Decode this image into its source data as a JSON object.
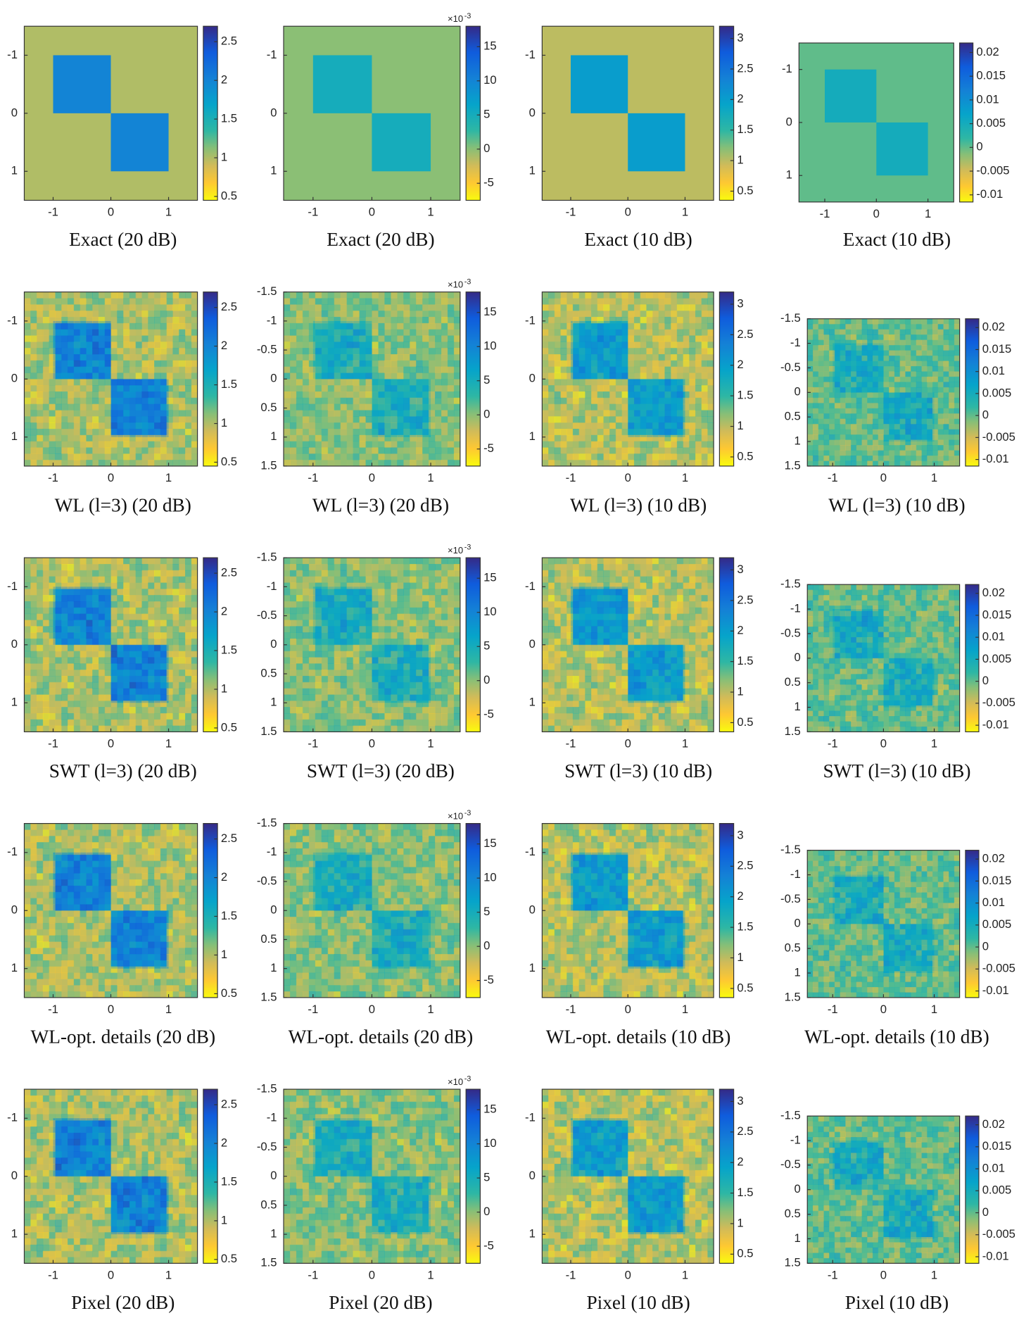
{
  "chart_data": [
    {
      "type": "heatmap",
      "title": "Exact (20 dB)",
      "xlim": [
        -1.5,
        1.5
      ],
      "ylim": [
        -1.5,
        1.5
      ],
      "xticks": [
        -1,
        0,
        1
      ],
      "yticks": [
        -1,
        0,
        1
      ],
      "clim": [
        0.45,
        2.7
      ],
      "cticks": [
        0.5,
        1,
        1.5,
        2,
        2.5
      ],
      "background": 1,
      "regions": [
        {
          "x": [
            -1,
            0
          ],
          "y": [
            -1,
            0
          ],
          "value": 2
        },
        {
          "x": [
            0,
            1
          ],
          "y": [
            0,
            1
          ],
          "value": 2
        }
      ]
    },
    {
      "type": "heatmap",
      "title": "Exact (20 dB)",
      "xlim": [
        -1.5,
        1.5
      ],
      "ylim": [
        -1.5,
        1.5
      ],
      "xticks": [
        -1,
        0,
        1
      ],
      "yticks": [
        -1,
        0,
        1
      ],
      "clim": [
        -7.5,
        18
      ],
      "cticks": [
        -5,
        0,
        5,
        10,
        15
      ],
      "colorbar_exponent_base": "×10",
      "colorbar_exponent": "-3",
      "background": 0,
      "regions": [
        {
          "x": [
            -1,
            0
          ],
          "y": [
            -1,
            0
          ],
          "value": 5
        },
        {
          "x": [
            0,
            1
          ],
          "y": [
            0,
            1
          ],
          "value": 5
        }
      ]
    },
    {
      "type": "heatmap",
      "title": "Exact (10 dB)",
      "xlim": [
        -1.5,
        1.5
      ],
      "ylim": [
        -1.5,
        1.5
      ],
      "xticks": [
        -1,
        0,
        1
      ],
      "yticks": [
        -1,
        0,
        1
      ],
      "clim": [
        0.35,
        3.2
      ],
      "cticks": [
        0.5,
        1,
        1.5,
        2,
        2.5,
        3
      ],
      "background": 1,
      "regions": [
        {
          "x": [
            -1,
            0
          ],
          "y": [
            -1,
            0
          ],
          "value": 2
        },
        {
          "x": [
            0,
            1
          ],
          "y": [
            0,
            1
          ],
          "value": 2
        }
      ]
    },
    {
      "type": "heatmap",
      "title": "Exact (10 dB)",
      "xlim": [
        -1.5,
        1.5
      ],
      "ylim": [
        -1.5,
        1.5
      ],
      "xticks": [
        -1,
        0,
        1
      ],
      "yticks": [
        -1,
        0,
        1
      ],
      "clim": [
        -0.0115,
        0.022
      ],
      "cticks": [
        -0.01,
        -0.005,
        0,
        0.005,
        0.01,
        0.015,
        0.02
      ],
      "background": 0,
      "regions": [
        {
          "x": [
            -1,
            0
          ],
          "y": [
            -1,
            0
          ],
          "value": 0.005
        },
        {
          "x": [
            0,
            1
          ],
          "y": [
            0,
            1
          ],
          "value": 0.005
        }
      ]
    },
    {
      "type": "heatmap",
      "title": "WL (l=3) (20 dB)",
      "xlim": [
        -1.5,
        1.5
      ],
      "ylim": [
        -1.5,
        1.5
      ],
      "xticks": [
        -1,
        0,
        1
      ],
      "yticks": [
        -1,
        0,
        1
      ],
      "clim": [
        0.45,
        2.7
      ],
      "cticks": [
        0.5,
        1,
        1.5,
        2,
        2.5
      ],
      "background": 1,
      "regions": [
        {
          "x": [
            -1,
            0
          ],
          "y": [
            -1,
            0
          ],
          "value": 2
        },
        {
          "x": [
            0,
            1
          ],
          "y": [
            0,
            1
          ],
          "value": 2
        }
      ]
    },
    {
      "type": "heatmap",
      "title": "WL (l=3) (20 dB)",
      "xlim": [
        -1.5,
        1.5
      ],
      "ylim": [
        -1.5,
        1.5
      ],
      "xticks": [
        -1,
        0,
        1
      ],
      "yticks": [
        -1.5,
        -1,
        -0.5,
        0,
        0.5,
        1,
        1.5
      ],
      "clim": [
        -7.5,
        18
      ],
      "cticks": [
        -5,
        0,
        5,
        10,
        15
      ],
      "colorbar_exponent_base": "×10",
      "colorbar_exponent": "-3",
      "background": 0,
      "regions": [
        {
          "x": [
            -1,
            0
          ],
          "y": [
            -1,
            0
          ],
          "value": 5
        },
        {
          "x": [
            0,
            1
          ],
          "y": [
            0,
            1
          ],
          "value": 5
        }
      ]
    },
    {
      "type": "heatmap",
      "title": "WL (l=3) (10 dB)",
      "xlim": [
        -1.5,
        1.5
      ],
      "ylim": [
        -1.5,
        1.5
      ],
      "xticks": [
        -1,
        0,
        1
      ],
      "yticks": [
        -1,
        0,
        1
      ],
      "clim": [
        0.35,
        3.2
      ],
      "cticks": [
        0.5,
        1,
        1.5,
        2,
        2.5,
        3
      ],
      "background": 1,
      "regions": [
        {
          "x": [
            -1,
            0
          ],
          "y": [
            -1,
            0
          ],
          "value": 2
        },
        {
          "x": [
            0,
            1
          ],
          "y": [
            0,
            1
          ],
          "value": 2
        }
      ]
    },
    {
      "type": "heatmap",
      "title": "WL (l=3) (10 dB)",
      "xlim": [
        -1.5,
        1.5
      ],
      "ylim": [
        -1.5,
        1.5
      ],
      "xticks": [
        -1,
        0,
        1
      ],
      "yticks": [
        -1.5,
        -1,
        -0.5,
        0,
        0.5,
        1,
        1.5
      ],
      "clim": [
        -0.0115,
        0.022
      ],
      "cticks": [
        -0.01,
        -0.005,
        0,
        0.005,
        0.01,
        0.015,
        0.02
      ],
      "background": 0,
      "regions": [
        {
          "x": [
            -1,
            0
          ],
          "y": [
            -1,
            0
          ],
          "value": 0.005
        },
        {
          "x": [
            0,
            1
          ],
          "y": [
            0,
            1
          ],
          "value": 0.005
        }
      ]
    },
    {
      "type": "heatmap",
      "title": "SWT (l=3) (20 dB)",
      "xlim": [
        -1.5,
        1.5
      ],
      "ylim": [
        -1.5,
        1.5
      ],
      "xticks": [
        -1,
        0,
        1
      ],
      "yticks": [
        -1,
        0,
        1
      ],
      "clim": [
        0.45,
        2.7
      ],
      "cticks": [
        0.5,
        1,
        1.5,
        2,
        2.5
      ],
      "background": 1,
      "regions": [
        {
          "x": [
            -1,
            0
          ],
          "y": [
            -1,
            0
          ],
          "value": 2
        },
        {
          "x": [
            0,
            1
          ],
          "y": [
            0,
            1
          ],
          "value": 2
        }
      ]
    },
    {
      "type": "heatmap",
      "title": "SWT (l=3) (20 dB)",
      "xlim": [
        -1.5,
        1.5
      ],
      "ylim": [
        -1.5,
        1.5
      ],
      "xticks": [
        -1,
        0,
        1
      ],
      "yticks": [
        -1.5,
        -1,
        -0.5,
        0,
        0.5,
        1,
        1.5
      ],
      "clim": [
        -7.5,
        18
      ],
      "cticks": [
        -5,
        0,
        5,
        10,
        15
      ],
      "colorbar_exponent_base": "×10",
      "colorbar_exponent": "-3",
      "background": 0,
      "regions": [
        {
          "x": [
            -1,
            0
          ],
          "y": [
            -1,
            0
          ],
          "value": 5
        },
        {
          "x": [
            0,
            1
          ],
          "y": [
            0,
            1
          ],
          "value": 5
        }
      ]
    },
    {
      "type": "heatmap",
      "title": "SWT (l=3) (10 dB)",
      "xlim": [
        -1.5,
        1.5
      ],
      "ylim": [
        -1.5,
        1.5
      ],
      "xticks": [
        -1,
        0,
        1
      ],
      "yticks": [
        -1,
        0,
        1
      ],
      "clim": [
        0.35,
        3.2
      ],
      "cticks": [
        0.5,
        1,
        1.5,
        2,
        2.5,
        3
      ],
      "background": 1,
      "regions": [
        {
          "x": [
            -1,
            0
          ],
          "y": [
            -1,
            0
          ],
          "value": 2
        },
        {
          "x": [
            0,
            1
          ],
          "y": [
            0,
            1
          ],
          "value": 2
        }
      ]
    },
    {
      "type": "heatmap",
      "title": "SWT (l=3) (10 dB)",
      "xlim": [
        -1.5,
        1.5
      ],
      "ylim": [
        -1.5,
        1.5
      ],
      "xticks": [
        -1,
        0,
        1
      ],
      "yticks": [
        -1.5,
        -1,
        -0.5,
        0,
        0.5,
        1,
        1.5
      ],
      "clim": [
        -0.0115,
        0.022
      ],
      "cticks": [
        -0.01,
        -0.005,
        0,
        0.005,
        0.01,
        0.015,
        0.02
      ],
      "background": 0,
      "regions": [
        {
          "x": [
            -1,
            0
          ],
          "y": [
            -1,
            0
          ],
          "value": 0.005
        },
        {
          "x": [
            0,
            1
          ],
          "y": [
            0,
            1
          ],
          "value": 0.005
        }
      ]
    },
    {
      "type": "heatmap",
      "title": "WL-opt. details (20 dB)",
      "xlim": [
        -1.5,
        1.5
      ],
      "ylim": [
        -1.5,
        1.5
      ],
      "xticks": [
        -1,
        0,
        1
      ],
      "yticks": [
        -1,
        0,
        1
      ],
      "clim": [
        0.45,
        2.7
      ],
      "cticks": [
        0.5,
        1,
        1.5,
        2,
        2.5
      ],
      "background": 1,
      "regions": [
        {
          "x": [
            -1,
            0
          ],
          "y": [
            -1,
            0
          ],
          "value": 2
        },
        {
          "x": [
            0,
            1
          ],
          "y": [
            0,
            1
          ],
          "value": 2
        }
      ]
    },
    {
      "type": "heatmap",
      "title": "WL-opt. details (20 dB)",
      "xlim": [
        -1.5,
        1.5
      ],
      "ylim": [
        -1.5,
        1.5
      ],
      "xticks": [
        -1,
        0,
        1
      ],
      "yticks": [
        -1.5,
        -1,
        -0.5,
        0,
        0.5,
        1,
        1.5
      ],
      "clim": [
        -7.5,
        18
      ],
      "cticks": [
        -5,
        0,
        5,
        10,
        15
      ],
      "colorbar_exponent_base": "×10",
      "colorbar_exponent": "-3",
      "background": 0,
      "regions": [
        {
          "x": [
            -1,
            0
          ],
          "y": [
            -1,
            0
          ],
          "value": 5
        },
        {
          "x": [
            0,
            1
          ],
          "y": [
            0,
            1
          ],
          "value": 5
        }
      ]
    },
    {
      "type": "heatmap",
      "title": "WL-opt. details (10 dB)",
      "xlim": [
        -1.5,
        1.5
      ],
      "ylim": [
        -1.5,
        1.5
      ],
      "xticks": [
        -1,
        0,
        1
      ],
      "yticks": [
        -1,
        0,
        1
      ],
      "clim": [
        0.35,
        3.2
      ],
      "cticks": [
        0.5,
        1,
        1.5,
        2,
        2.5,
        3
      ],
      "background": 1,
      "regions": [
        {
          "x": [
            -1,
            0
          ],
          "y": [
            -1,
            0
          ],
          "value": 2
        },
        {
          "x": [
            0,
            1
          ],
          "y": [
            0,
            1
          ],
          "value": 2
        }
      ]
    },
    {
      "type": "heatmap",
      "title": "WL-opt. details (10 dB)",
      "xlim": [
        -1.5,
        1.5
      ],
      "ylim": [
        -1.5,
        1.5
      ],
      "xticks": [
        -1,
        0,
        1
      ],
      "yticks": [
        -1.5,
        -1,
        -0.5,
        0,
        0.5,
        1,
        1.5
      ],
      "clim": [
        -0.0115,
        0.022
      ],
      "cticks": [
        -0.01,
        -0.005,
        0,
        0.005,
        0.01,
        0.015,
        0.02
      ],
      "background": 0,
      "regions": [
        {
          "x": [
            -1,
            0
          ],
          "y": [
            -1,
            0
          ],
          "value": 0.005
        },
        {
          "x": [
            0,
            1
          ],
          "y": [
            0,
            1
          ],
          "value": 0.005
        }
      ]
    },
    {
      "type": "heatmap",
      "title": "Pixel (20 dB)",
      "xlim": [
        -1.5,
        1.5
      ],
      "ylim": [
        -1.5,
        1.5
      ],
      "xticks": [
        -1,
        0,
        1
      ],
      "yticks": [
        -1,
        0,
        1
      ],
      "clim": [
        0.45,
        2.7
      ],
      "cticks": [
        0.5,
        1,
        1.5,
        2,
        2.5
      ],
      "background": 1,
      "regions": [
        {
          "x": [
            -1,
            0
          ],
          "y": [
            -1,
            0
          ],
          "value": 2
        },
        {
          "x": [
            0,
            1
          ],
          "y": [
            0,
            1
          ],
          "value": 2
        }
      ]
    },
    {
      "type": "heatmap",
      "title": "Pixel (20 dB)",
      "xlim": [
        -1.5,
        1.5
      ],
      "ylim": [
        -1.5,
        1.5
      ],
      "xticks": [
        -1,
        0,
        1
      ],
      "yticks": [
        -1.5,
        -1,
        -0.5,
        0,
        0.5,
        1,
        1.5
      ],
      "clim": [
        -7.5,
        18
      ],
      "cticks": [
        -5,
        0,
        5,
        10,
        15
      ],
      "colorbar_exponent_base": "×10",
      "colorbar_exponent": "-3",
      "background": 0,
      "regions": [
        {
          "x": [
            -1,
            0
          ],
          "y": [
            -1,
            0
          ],
          "value": 5
        },
        {
          "x": [
            0,
            1
          ],
          "y": [
            0,
            1
          ],
          "value": 5
        }
      ]
    },
    {
      "type": "heatmap",
      "title": "Pixel (10 dB)",
      "xlim": [
        -1.5,
        1.5
      ],
      "ylim": [
        -1.5,
        1.5
      ],
      "xticks": [
        -1,
        0,
        1
      ],
      "yticks": [
        -1,
        0,
        1
      ],
      "clim": [
        0.35,
        3.2
      ],
      "cticks": [
        0.5,
        1,
        1.5,
        2,
        2.5,
        3
      ],
      "background": 1,
      "regions": [
        {
          "x": [
            -1,
            0
          ],
          "y": [
            -1,
            0
          ],
          "value": 2
        },
        {
          "x": [
            0,
            1
          ],
          "y": [
            0,
            1
          ],
          "value": 2
        }
      ]
    },
    {
      "type": "heatmap",
      "title": "Pixel (10 dB)",
      "xlim": [
        -1.5,
        1.5
      ],
      "ylim": [
        -1.5,
        1.5
      ],
      "xticks": [
        -1,
        0,
        1
      ],
      "yticks": [
        -1.5,
        -1,
        -0.5,
        0,
        0.5,
        1,
        1.5
      ],
      "clim": [
        -0.0115,
        0.022
      ],
      "cticks": [
        -0.01,
        -0.005,
        0,
        0.005,
        0.01,
        0.015,
        0.02
      ],
      "background": 0,
      "regions": [
        {
          "x": [
            -1,
            0
          ],
          "y": [
            -1,
            0
          ],
          "value": 0.005
        },
        {
          "x": [
            0,
            1
          ],
          "y": [
            0,
            1
          ],
          "value": 0.005
        }
      ]
    }
  ]
}
